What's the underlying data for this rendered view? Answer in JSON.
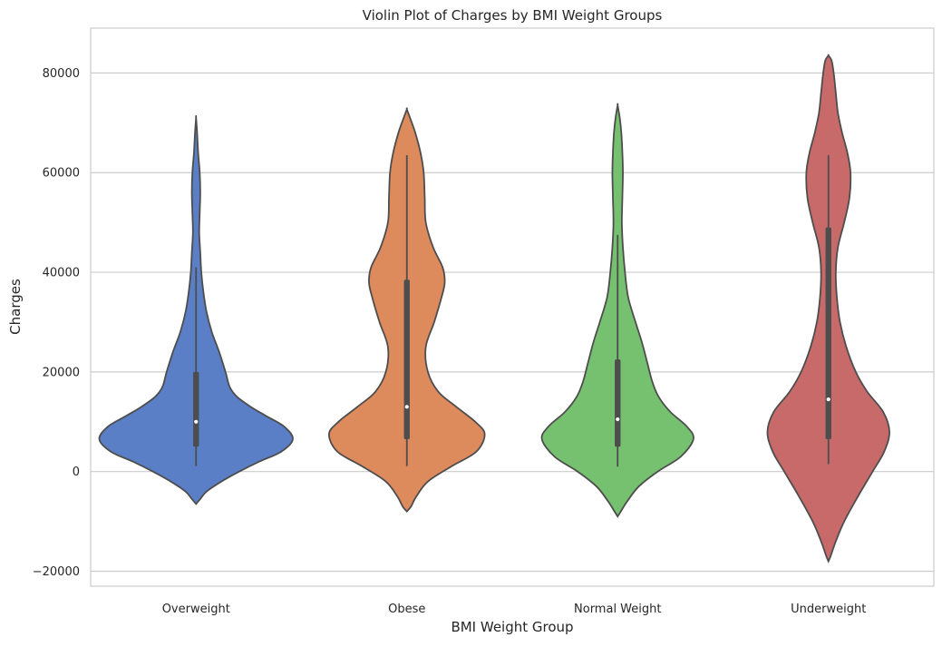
{
  "chart_data": {
    "type": "violin",
    "title": "Violin Plot of Charges by BMI Weight Groups",
    "xlabel": "BMI Weight Group",
    "ylabel": "Charges",
    "ylim": [
      -23000,
      89000
    ],
    "yticks": [
      -20000,
      0,
      20000,
      40000,
      60000,
      80000
    ],
    "ytick_labels": [
      "−20000",
      "0",
      "20000",
      "40000",
      "60000",
      "80000"
    ],
    "grid": true,
    "categories": [
      "Overweight",
      "Obese",
      "Normal Weight",
      "Underweight"
    ],
    "colors": [
      "#5a7fc6",
      "#dd8a5c",
      "#76c16f",
      "#c96a6a"
    ],
    "outline_color": "#4d4d4d",
    "violins": [
      {
        "category": "Overweight",
        "box": {
          "whisker_low": 1100,
          "q1": 5000,
          "median": 10000,
          "q3": 20000,
          "whisker_high": 41000
        },
        "profile": [
          [
            -6500,
            0.0
          ],
          [
            -5500,
            0.04
          ],
          [
            -4000,
            0.1
          ],
          [
            -2000,
            0.24
          ],
          [
            0,
            0.41
          ],
          [
            2000,
            0.6
          ],
          [
            4000,
            0.81
          ],
          [
            6500,
            0.92
          ],
          [
            9000,
            0.84
          ],
          [
            11000,
            0.68
          ],
          [
            13000,
            0.52
          ],
          [
            15000,
            0.39
          ],
          [
            17000,
            0.32
          ],
          [
            20000,
            0.28
          ],
          [
            24000,
            0.22
          ],
          [
            28000,
            0.15
          ],
          [
            32000,
            0.1
          ],
          [
            36000,
            0.07
          ],
          [
            40000,
            0.05
          ],
          [
            44000,
            0.04
          ],
          [
            48000,
            0.03
          ],
          [
            52000,
            0.035
          ],
          [
            56000,
            0.04
          ],
          [
            60000,
            0.035
          ],
          [
            64000,
            0.02
          ],
          [
            68000,
            0.01
          ],
          [
            71000,
            0.0
          ]
        ]
      },
      {
        "category": "Obese",
        "box": {
          "whisker_low": 1100,
          "q1": 6500,
          "median": 13000,
          "q3": 38500,
          "whisker_high": 63500
        },
        "profile": [
          [
            -8000,
            0.0
          ],
          [
            -7000,
            0.04
          ],
          [
            -5000,
            0.09
          ],
          [
            -2000,
            0.2
          ],
          [
            1000,
            0.42
          ],
          [
            4000,
            0.66
          ],
          [
            7500,
            0.74
          ],
          [
            10000,
            0.65
          ],
          [
            13000,
            0.47
          ],
          [
            16000,
            0.3
          ],
          [
            20000,
            0.2
          ],
          [
            25000,
            0.18
          ],
          [
            30000,
            0.26
          ],
          [
            35000,
            0.33
          ],
          [
            38000,
            0.36
          ],
          [
            41000,
            0.34
          ],
          [
            45000,
            0.25
          ],
          [
            50000,
            0.18
          ],
          [
            55000,
            0.17
          ],
          [
            60000,
            0.16
          ],
          [
            64000,
            0.13
          ],
          [
            68000,
            0.08
          ],
          [
            71000,
            0.03
          ],
          [
            72700,
            0.0
          ]
        ]
      },
      {
        "category": "Normal Weight",
        "box": {
          "whisker_low": 1000,
          "q1": 5000,
          "median": 10500,
          "q3": 22500,
          "whisker_high": 47500
        },
        "profile": [
          [
            -9000,
            0.0
          ],
          [
            -8000,
            0.03
          ],
          [
            -6000,
            0.09
          ],
          [
            -3000,
            0.2
          ],
          [
            0,
            0.38
          ],
          [
            3000,
            0.6
          ],
          [
            6500,
            0.72
          ],
          [
            9000,
            0.66
          ],
          [
            12000,
            0.5
          ],
          [
            15000,
            0.39
          ],
          [
            18000,
            0.33
          ],
          [
            22000,
            0.28
          ],
          [
            26000,
            0.23
          ],
          [
            30000,
            0.17
          ],
          [
            35000,
            0.1
          ],
          [
            40000,
            0.07
          ],
          [
            45000,
            0.05
          ],
          [
            50000,
            0.04
          ],
          [
            55000,
            0.045
          ],
          [
            60000,
            0.05
          ],
          [
            64000,
            0.045
          ],
          [
            68000,
            0.035
          ],
          [
            71000,
            0.02
          ],
          [
            73500,
            0.0
          ]
        ]
      },
      {
        "category": "Underweight",
        "box": {
          "whisker_low": 1500,
          "q1": 6500,
          "median": 14500,
          "q3": 49000,
          "whisker_high": 63500
        },
        "profile": [
          [
            -18000,
            0.0
          ],
          [
            -17000,
            0.02
          ],
          [
            -14000,
            0.07
          ],
          [
            -10000,
            0.15
          ],
          [
            -5000,
            0.28
          ],
          [
            0,
            0.42
          ],
          [
            4000,
            0.53
          ],
          [
            8000,
            0.58
          ],
          [
            12000,
            0.52
          ],
          [
            16000,
            0.37
          ],
          [
            20000,
            0.26
          ],
          [
            25000,
            0.17
          ],
          [
            30000,
            0.11
          ],
          [
            35000,
            0.08
          ],
          [
            40000,
            0.07
          ],
          [
            45000,
            0.09
          ],
          [
            50000,
            0.15
          ],
          [
            55000,
            0.2
          ],
          [
            60000,
            0.21
          ],
          [
            64000,
            0.18
          ],
          [
            68000,
            0.13
          ],
          [
            72000,
            0.09
          ],
          [
            76000,
            0.07
          ],
          [
            80000,
            0.05
          ],
          [
            82500,
            0.03
          ],
          [
            83500,
            0.0
          ]
        ]
      }
    ]
  }
}
